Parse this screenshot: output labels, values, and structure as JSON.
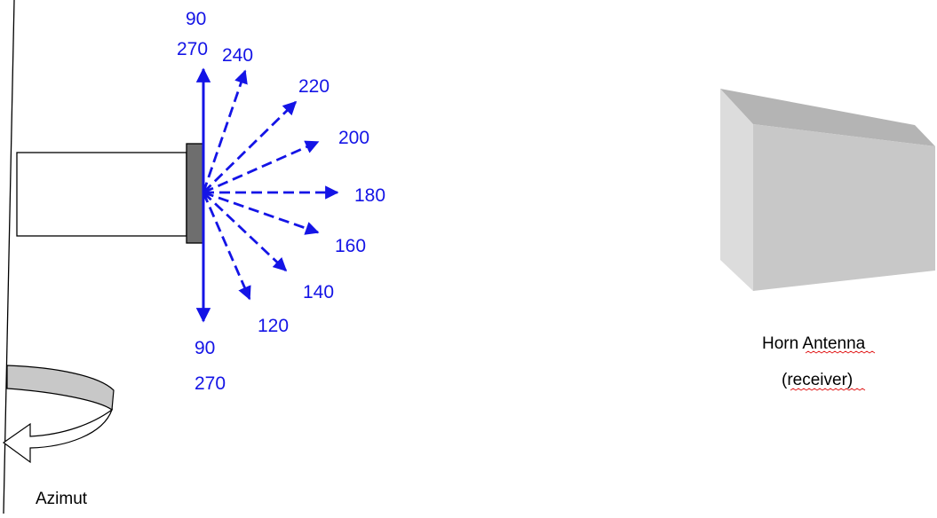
{
  "colors": {
    "arrow": "#1414e6",
    "outline": "#000000",
    "flange_fill": "#6e6e6e",
    "horn_front": "#c8c8c8",
    "horn_top": "#b4b4b4",
    "horn_side": "#dcdcdc",
    "rotation_band": "#c8c8c8",
    "spellcheck_underline": "#e01010"
  },
  "icons": {
    "rotation": "curved-arrow-icon",
    "horn": "horn-antenna-icon"
  },
  "beam_directions": [
    {
      "deg": 90,
      "label": "90",
      "style": "solid"
    },
    {
      "deg": 240,
      "label": "240",
      "style": "dashed"
    },
    {
      "deg": 220,
      "label": "220",
      "style": "dashed"
    },
    {
      "deg": 200,
      "label": "200",
      "style": "dashed"
    },
    {
      "deg": 180,
      "label": "180",
      "style": "dashed"
    },
    {
      "deg": 160,
      "label": "160",
      "style": "dashed"
    },
    {
      "deg": 140,
      "label": "140",
      "style": "dashed"
    },
    {
      "deg": 120,
      "label": "120",
      "style": "dashed"
    },
    {
      "deg": 270,
      "label": "270",
      "style": "solid"
    }
  ],
  "labels": {
    "top_90": "90",
    "top_270": "270",
    "bottom_90": "90",
    "bottom_270": "270",
    "a240": "240",
    "a220": "220",
    "a200": "200",
    "a180": "180",
    "a160": "160",
    "a140": "140",
    "a120": "120"
  },
  "horn": {
    "caption_word1": "Horn",
    "caption_word2": "Antenna",
    "caption_line2": "(receiver)"
  },
  "rotation": {
    "label": "Azimut"
  }
}
